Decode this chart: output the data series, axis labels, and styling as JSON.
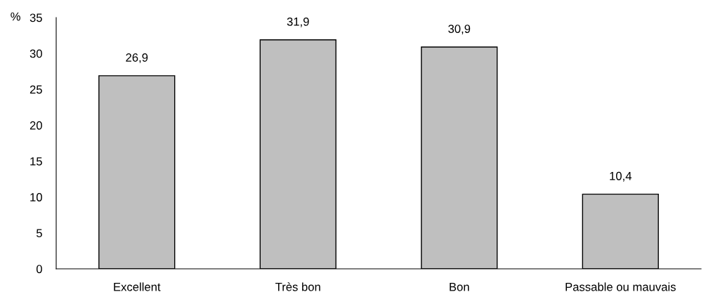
{
  "chart_data": {
    "type": "bar",
    "ylabel": "%",
    "categories": [
      "Excellent",
      "Très bon",
      "Bon",
      "Passable ou mauvais"
    ],
    "values": [
      26.9,
      31.9,
      30.9,
      10.4
    ],
    "value_labels": [
      "26,9",
      "31,9",
      "30,9",
      "10,4"
    ],
    "color": "#bfbfbf",
    "ylim": [
      0,
      35
    ],
    "yticks": [
      0,
      5,
      10,
      15,
      20,
      25,
      30,
      35
    ],
    "grid": false,
    "legend": false
  }
}
